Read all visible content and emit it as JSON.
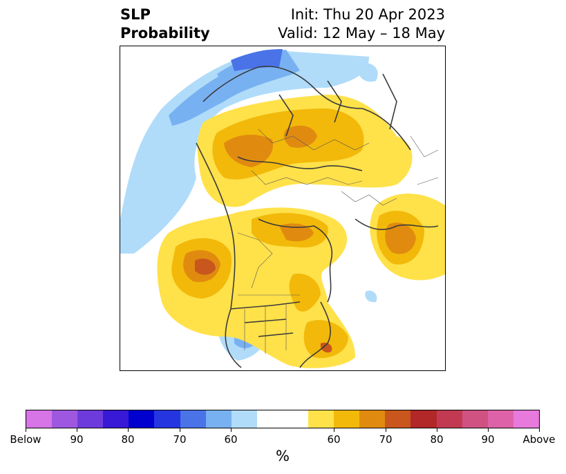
{
  "title": {
    "left_line1": "SLP",
    "left_line2": "Probability",
    "right_line1": "Init: Thu 20 Apr 2023",
    "right_line2": "Valid: 12 May – 18 May"
  },
  "map": {
    "projection": "polar stereographic, North Pole",
    "features": [
      "country borders",
      "US state borders",
      "Canadian province borders",
      "coastlines"
    ]
  },
  "colorbar": {
    "unit": "%",
    "segments": [
      {
        "color": "#d774e6"
      },
      {
        "color": "#9e58e0"
      },
      {
        "color": "#6d3bdc"
      },
      {
        "color": "#3719d6"
      },
      {
        "color": "#0000cf"
      },
      {
        "color": "#2536e0"
      },
      {
        "color": "#4a73e8"
      },
      {
        "color": "#78b1f2"
      },
      {
        "color": "#b0dcfa"
      },
      {
        "color": "#ffffff",
        "wide": true
      },
      {
        "color": "#ffe14a"
      },
      {
        "color": "#f2b90a"
      },
      {
        "color": "#e08b10"
      },
      {
        "color": "#c8561d"
      },
      {
        "color": "#b22727"
      },
      {
        "color": "#c23a52"
      },
      {
        "color": "#cf5282"
      },
      {
        "color": "#dd62a8"
      },
      {
        "color": "#e77adc"
      }
    ],
    "ticks": [
      {
        "label": "Below",
        "pos": 0
      },
      {
        "label": "90",
        "pos": 1
      },
      {
        "label": "80",
        "pos": 2
      },
      {
        "label": "70",
        "pos": 3
      },
      {
        "label": "60",
        "pos": 4
      },
      {
        "label": "60",
        "pos": 5
      },
      {
        "label": "70",
        "pos": 6
      },
      {
        "label": "80",
        "pos": 7
      },
      {
        "label": "90",
        "pos": 8
      },
      {
        "label": "Above",
        "pos": 9
      }
    ]
  }
}
